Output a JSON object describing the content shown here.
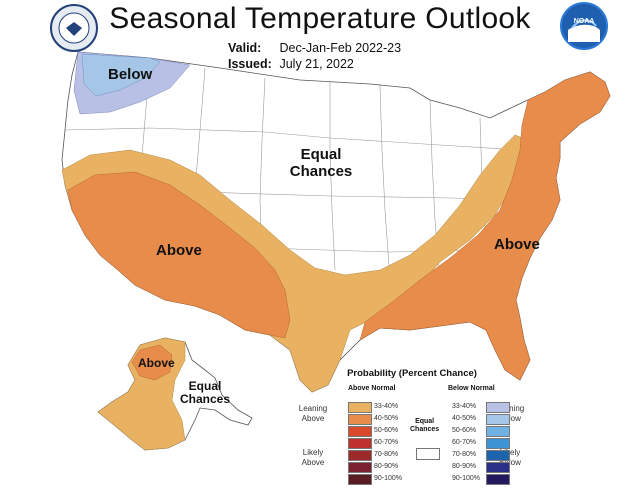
{
  "title": "Seasonal Temperature Outlook",
  "valid_label": "Valid:",
  "valid_value": "Dec-Jan-Feb 2022-23",
  "issued_label": "Issued:",
  "issued_value": "July 21, 2022",
  "noaa_text": "NOAA",
  "regions": {
    "below_nw": "Below",
    "equal_central_1": "Equal",
    "equal_central_2": "Chances",
    "above_west": "Above",
    "above_east": "Above",
    "above_alaska": "Above",
    "equal_alaska_1": "Equal",
    "equal_alaska_2": "Chances"
  },
  "legend": {
    "title": "Probability (Percent Chance)",
    "above_header": "Above Normal",
    "below_header": "Below Normal",
    "leaning_above_1": "Leaning",
    "leaning_above_2": "Above",
    "likely_above_1": "Likely",
    "likely_above_2": "Above",
    "leaning_below_1": "Leaning",
    "leaning_below_2": "Below",
    "likely_below_1": "Likely",
    "likely_below_2": "Below",
    "equal_1": "Equal",
    "equal_2": "Chances",
    "above_ranges": [
      "33-40%",
      "40-50%",
      "50-60%",
      "60-70%",
      "70-80%",
      "80-90%",
      "90-100%"
    ],
    "below_ranges": [
      "33-40%",
      "40-50%",
      "50-60%",
      "60-70%",
      "70-80%",
      "80-90%",
      "90-100%"
    ],
    "above_colors": [
      "#e9b262",
      "#e88c4c",
      "#d9482d",
      "#c0302c",
      "#9c2a2d",
      "#7b2232",
      "#5a1b22"
    ],
    "below_colors": [
      "#b9c0e6",
      "#a6c6e8",
      "#6fb2e3",
      "#3e95d6",
      "#1d64ad",
      "#2c2f88",
      "#24195e"
    ]
  },
  "colors": {
    "above_lean": "#e9b262",
    "above_40": "#e88c4c",
    "below_lean": "#b9c0e6",
    "below_40": "#a6c6e8",
    "land": "#ffffff",
    "border": "#888888"
  }
}
